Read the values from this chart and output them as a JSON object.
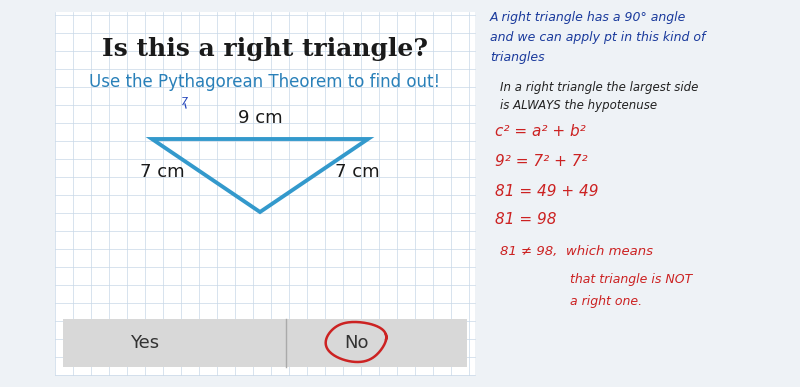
{
  "title": "Is this a right triangle?",
  "subtitle": "Use the Pythagorean Theorem to find out!",
  "title_color": "#1a1a1a",
  "subtitle_color": "#2980b9",
  "triangle_color": "#3399cc",
  "triangle_linewidth": 2.8,
  "top_label": "9 cm",
  "left_label": "7 cm",
  "right_label": "7 cm",
  "yes_label": "Yes",
  "no_label": "No",
  "button_bg": "#d0d0d0",
  "button_border": "#c0c0c0",
  "panel_bg": "#ffffff",
  "fig_bg": "#eef2f6",
  "grid_color": "#c8d8e8",
  "note1_color": "#1a3a9c",
  "note2_color": "#222222",
  "eq_color": "#cc2222",
  "circle_color": "#cc2222",
  "note1_line1": "A right triangle has a 90° angle",
  "note1_line2": "and we can apply pt in this kind of",
  "note1_line3": "triangles",
  "note2_line1": "In a right triangle the largest side",
  "note2_line2": "is ALWAYS the hypotenuse",
  "eq1": "c² = a² + b²",
  "eq2": "9² = 7² + 7²",
  "eq3": "81 = 49 + 49",
  "eq4": "81 = 98",
  "eq5": "81 ≠ 98,  which means",
  "eq5b": "that triangle is NOT",
  "eq5c": "a right one."
}
